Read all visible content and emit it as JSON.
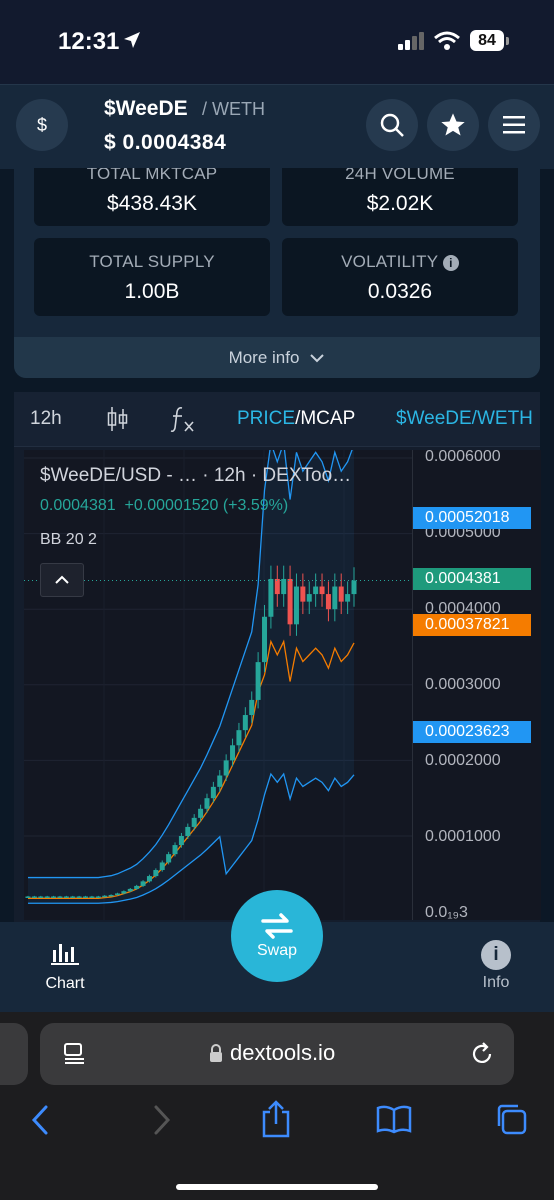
{
  "status_bar": {
    "time": "12:31",
    "battery": "84"
  },
  "header": {
    "avatar_symbol": "$",
    "pair_base": "$WeeDE",
    "pair_separator_quote": "/ WETH",
    "price": "$ 0.0004384"
  },
  "stats": {
    "total_mktcap_label": "TOTAL MKTCAP",
    "total_mktcap_value": "$438.43K",
    "volume_label": "24H VOLUME",
    "volume_value": "$2.02K",
    "supply_label": "TOTAL SUPPLY",
    "supply_value": "1.00B",
    "volatility_label": "VOLATILITY",
    "volatility_value": "0.0326",
    "more_info_label": "More info"
  },
  "chart_toolbar": {
    "interval": "12h",
    "price_label": "PRICE",
    "mcap_label": "/MCAP",
    "pair_label": "$WeeDE/WETH"
  },
  "chart": {
    "legend_title": "$WeeDE/USD - …  · 12h · DEXToo…",
    "legend_price": "0.0004381",
    "legend_change": "+0.00001520 (+3.59%)",
    "indicator": "BB 20 2"
  },
  "chart_data": {
    "type": "candlestick",
    "title": "$WeeDE/USD - … · 12h · DEXToo…",
    "y_ticks": [
      "0.0006000",
      "0.0005000",
      "0.0004000",
      "0.0003000",
      "0.0002000",
      "0.0001000",
      "0.0₁₉3"
    ],
    "price_tags": [
      {
        "value": "0.00052018",
        "color": "#2196f3",
        "meaning": "upper band"
      },
      {
        "value": "0.0004381",
        "color": "#26a69a",
        "meaning": "last price"
      },
      {
        "value": "0.00037821",
        "color": "#f57c00",
        "meaning": "basis"
      },
      {
        "value": "0.00023623",
        "color": "#2196f3",
        "meaning": "lower band"
      }
    ],
    "close_series": [
      2e-05,
      2e-05,
      2e-05,
      2e-05,
      2e-05,
      2e-05,
      2e-05,
      2e-05,
      2e-05,
      2e-05,
      2e-05,
      2e-05,
      2.1e-05,
      2.2e-05,
      2.4e-05,
      2.7e-05,
      3e-05,
      3.4e-05,
      4e-05,
      4.7e-05,
      5.5e-05,
      6.5e-05,
      7.6e-05,
      8.8e-05,
      0.0001,
      0.000112,
      0.000124,
      0.000136,
      0.00015,
      0.000165,
      0.00018,
      0.0002,
      0.00022,
      0.00024,
      0.00026,
      0.00028,
      0.00033,
      0.00039,
      0.00044,
      0.00042,
      0.00044,
      0.00038,
      0.00043,
      0.00041,
      0.00042,
      0.00043,
      0.00042,
      0.0004,
      0.00043,
      0.00041,
      0.00042,
      0.000438
    ],
    "colors": {
      "up": "#26a69a",
      "down": "#ef5350",
      "band": "#2196f3",
      "basis": "#f57c00"
    }
  },
  "bottom_nav": {
    "chart_label": "Chart",
    "swap_label": "Swap",
    "info_label": "Info"
  },
  "browser": {
    "url": "dextools.io"
  }
}
